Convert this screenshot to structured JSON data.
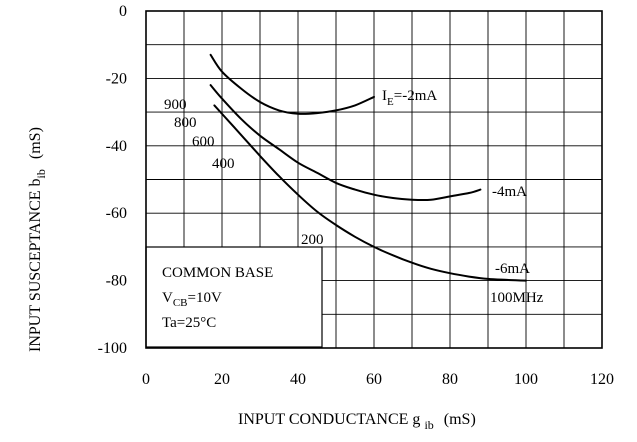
{
  "chart_data": {
    "type": "line",
    "xlabel": {
      "main": "INPUT CONDUCTANCE g",
      "sub": "ib",
      "unit": "(mS)"
    },
    "ylabel": {
      "main": "INPUT SUSCEPTANCE b",
      "sub": "ib",
      "unit": "(mS)"
    },
    "xlim": [
      0,
      120
    ],
    "ylim": [
      -100,
      0
    ],
    "xticks": [
      0,
      20,
      40,
      60,
      80,
      100,
      120
    ],
    "yticks": [
      0,
      -20,
      -40,
      -60,
      -80,
      -100
    ],
    "grid": true,
    "series": [
      {
        "name": "I_E=-2mA",
        "label": {
          "main": "I",
          "sub": "E",
          "rest": "=-2mA"
        },
        "x": [
          17,
          20,
          25,
          30,
          35,
          40,
          45,
          50,
          55,
          60
        ],
        "y": [
          -13,
          -18,
          -23,
          -27,
          -29.5,
          -30.5,
          -30.3,
          -29.5,
          -28,
          -25.5
        ]
      },
      {
        "name": "-4mA",
        "label": {
          "main": "-4mA"
        },
        "x": [
          17,
          20,
          25,
          30,
          35,
          40,
          45,
          50,
          55,
          60,
          65,
          70,
          75,
          80,
          85,
          88
        ],
        "y": [
          -22,
          -26,
          -32,
          -37,
          -41,
          -45,
          -48,
          -51,
          -53,
          -54.5,
          -55.5,
          -56,
          -56,
          -55,
          -54,
          -53
        ]
      },
      {
        "name": "-6mA",
        "label": {
          "main": "-6mA"
        },
        "x": [
          18,
          22,
          26,
          30,
          35,
          40,
          45,
          50,
          55,
          60,
          65,
          70,
          75,
          80,
          85,
          90,
          95,
          100
        ],
        "y": [
          -28,
          -33,
          -38,
          -43,
          -49,
          -54.5,
          -59.5,
          -63.5,
          -67,
          -70,
          -72.5,
          -74.7,
          -76.5,
          -77.8,
          -78.8,
          -79.5,
          -79.8,
          -80
        ]
      }
    ],
    "frequency_labels": [
      "900",
      "800",
      "600",
      "400",
      "200",
      "100MHz"
    ],
    "conditions": {
      "line1": "COMMON BASE",
      "line2": {
        "main": "V",
        "sub": "CB",
        "rest": "=10V"
      },
      "line3": "Ta=25°C"
    }
  }
}
